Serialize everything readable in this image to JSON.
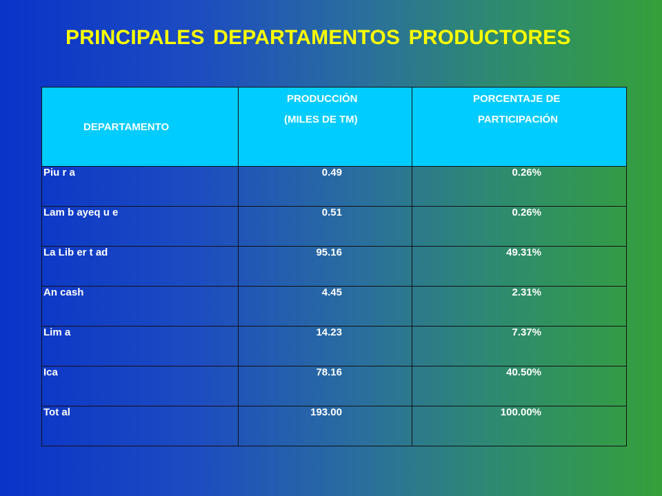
{
  "title": "PRINCIPALES  DEPARTAMENTOS  PRODUCTORES",
  "table": {
    "headers": {
      "departamento": "DEPARTAMENTO",
      "produccion_line1": "PRODUCCIÓN",
      "produccion_line2": "(MILES DE TM)",
      "porcentaje_line1": "PORCENTAJE DE",
      "porcentaje_line2": "PARTICIPACIÓN"
    },
    "rows": [
      {
        "departamento": "Piu r a",
        "produccion": "0.49",
        "porcentaje": "0.26%"
      },
      {
        "departamento": "Lam b ayeq u e",
        "produccion": "0.51",
        "porcentaje": "0.26%"
      },
      {
        "departamento": "La Lib er t ad",
        "produccion": "95.16",
        "porcentaje": "49.31%"
      },
      {
        "departamento": "An cash",
        "produccion": "4.45",
        "porcentaje": "2.31%"
      },
      {
        "departamento": "Lim a",
        "produccion": "14.23",
        "porcentaje": "7.37%"
      },
      {
        "departamento": "Ica",
        "produccion": "78.16",
        "porcentaje": "40.50%"
      },
      {
        "departamento": "Tot al",
        "produccion": "193.00",
        "porcentaje": "100.00%"
      }
    ]
  },
  "colors": {
    "title": "#ffff00",
    "header_bg": "#00ccff",
    "header_text": "#0a2a7a",
    "bg_left": "#0a33c8",
    "bg_right": "#35a03a"
  }
}
